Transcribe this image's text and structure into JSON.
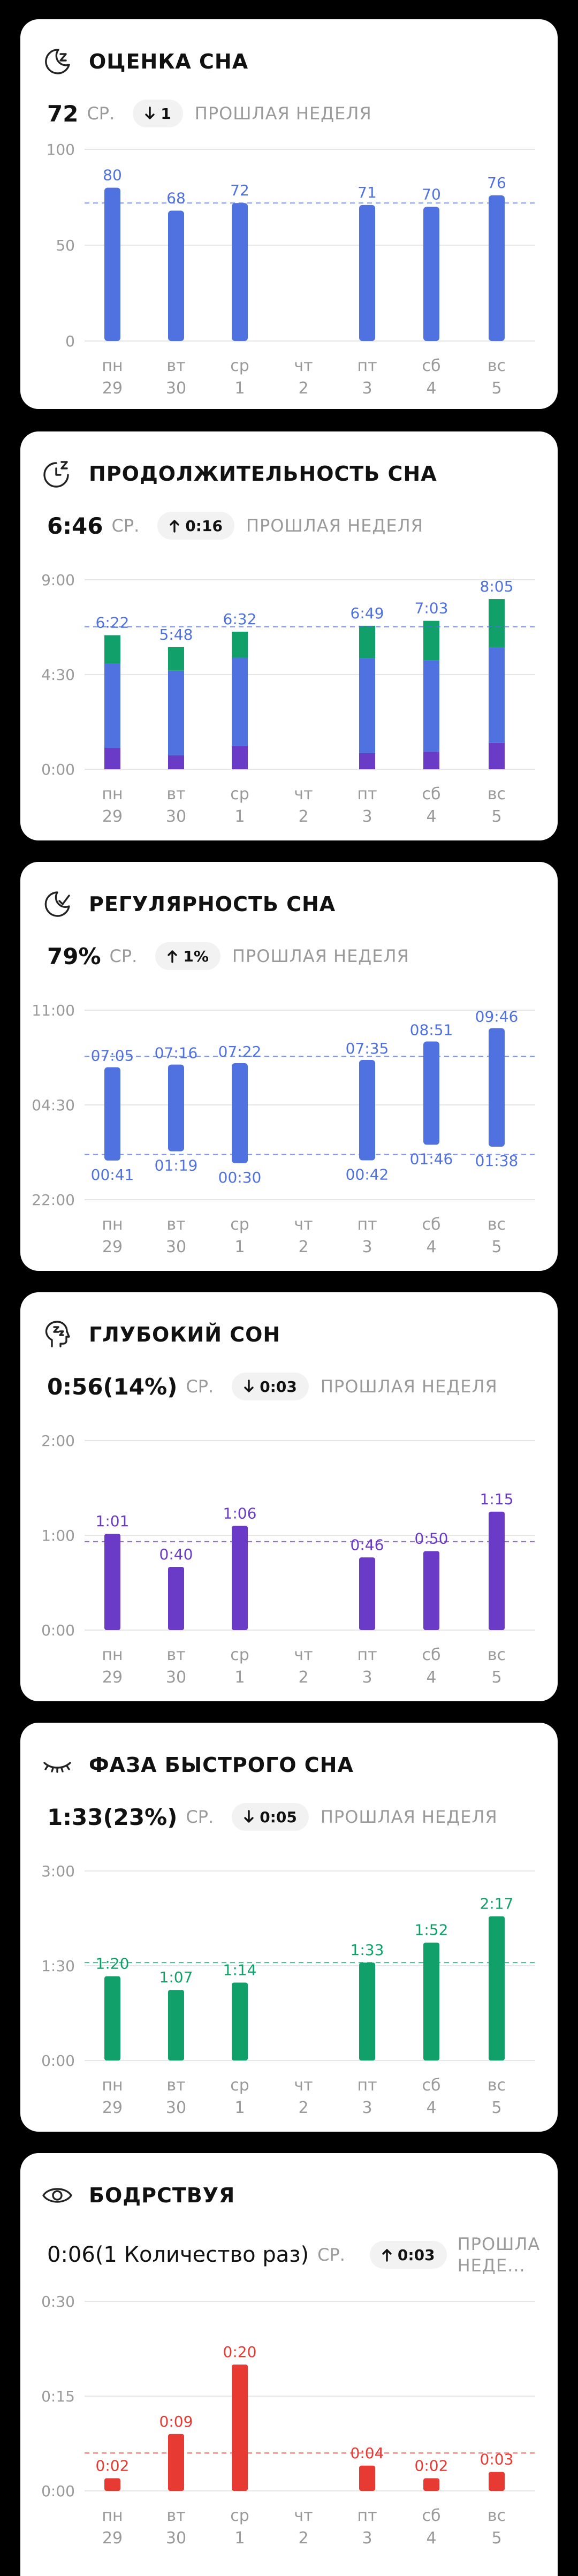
{
  "x_axis": {
    "days": [
      "пн",
      "вт",
      "ср",
      "чт",
      "пт",
      "сб",
      "вс"
    ],
    "dates": [
      "29",
      "30",
      "1",
      "2",
      "3",
      "4",
      "5"
    ]
  },
  "colors": {
    "primary": "#4f72e0",
    "green": "#12a06a",
    "purple": "#6a3bc7",
    "red": "#e63a33",
    "grid": "#e6e6e6",
    "text": "#9a9a9a"
  },
  "cards": [
    {
      "title": "ОЦЕНКА СНА",
      "icon": "moon-zzz-icon",
      "stat": {
        "main": "72",
        "unit": "СР.",
        "trend": "1",
        "trend_dir": "down",
        "trend_text": "ПРОШЛАЯ НЕДЕЛЯ"
      },
      "chart_data": {
        "type": "bar",
        "categories": [
          "пн 29",
          "вт 30",
          "ср 1",
          "чт 2",
          "пт 3",
          "сб 4",
          "вс 5"
        ],
        "values": [
          80,
          68,
          72,
          null,
          71,
          70,
          76
        ],
        "labels": [
          "80",
          "68",
          "72",
          "",
          "71",
          "70",
          "76"
        ],
        "yticks": [
          "100",
          "50",
          "0"
        ],
        "ylim": [
          0,
          100
        ],
        "average": 72,
        "color": "#4f72e0"
      }
    },
    {
      "title": "ПРОДОЛЖИТЕЛЬНОСТЬ СНА",
      "icon": "clock-zzz-icon",
      "stat": {
        "main": "6:46",
        "unit": "СР.",
        "trend": "0:16",
        "trend_dir": "up",
        "trend_text": "ПРОШЛАЯ НЕДЕЛЯ"
      },
      "chart_data": {
        "type": "bar",
        "stacked": true,
        "categories": [
          "пн 29",
          "вт 30",
          "ср 1",
          "чт 2",
          "пт 3",
          "сб 4",
          "вс 5"
        ],
        "series_colors": [
          "#6a3bc7",
          "#4f72e0",
          "#12a06a"
        ],
        "totals_min": [
          382,
          348,
          392,
          null,
          409,
          423,
          485
        ],
        "deep_min": [
          61,
          40,
          66,
          null,
          46,
          50,
          75
        ],
        "light_min": [
          241,
          241,
          252,
          null,
          270,
          261,
          273
        ],
        "rem_min": [
          80,
          67,
          74,
          null,
          93,
          112,
          137
        ],
        "labels": [
          "6:22",
          "5:48",
          "6:32",
          "",
          "6:49",
          "7:03",
          "8:05"
        ],
        "yticks": [
          "9:00",
          "4:30",
          "0:00"
        ],
        "ylim": [
          0,
          540
        ],
        "average": 406
      }
    },
    {
      "title": "РЕГУЛЯРНОСТЬ СНА",
      "icon": "moon-check-icon",
      "stat": {
        "main": "79%",
        "unit": "СР.",
        "trend": "1%",
        "trend_dir": "up",
        "trend_text": "ПРОШЛАЯ НЕДЕЛЯ"
      },
      "chart_data": {
        "type": "range",
        "categories": [
          "пн 29",
          "вт 30",
          "ср 1",
          "чт 2",
          "пт 3",
          "сб 4",
          "вс 5"
        ],
        "wake": [
          "07:05",
          "07:16",
          "07:22",
          "",
          "07:35",
          "08:51",
          "09:46"
        ],
        "bed": [
          "00:41",
          "01:19",
          "00:30",
          "",
          "00:42",
          "01:46",
          "01:38"
        ],
        "yticks": [
          "11:00",
          "04:30",
          "22:00"
        ],
        "avg_wake": "07:50",
        "avg_bed": "01:06"
      }
    },
    {
      "title": "ГЛУБОКИЙ СОН",
      "icon": "head-zzz-icon",
      "stat": {
        "main": "0:56(14%)",
        "unit": "СР.",
        "trend": "0:03",
        "trend_dir": "down",
        "trend_text": "ПРОШЛАЯ НЕДЕЛЯ"
      },
      "chart_data": {
        "type": "bar",
        "categories": [
          "пн 29",
          "вт 30",
          "ср 1",
          "чт 2",
          "пт 3",
          "сб 4",
          "вс 5"
        ],
        "values": [
          61,
          40,
          66,
          null,
          46,
          50,
          75
        ],
        "labels": [
          "1:01",
          "0:40",
          "1:06",
          "",
          "0:46",
          "0:50",
          "1:15"
        ],
        "yticks": [
          "2:00",
          "1:00",
          "0:00"
        ],
        "ylim": [
          0,
          120
        ],
        "average": 56,
        "color": "#6a3bc7"
      }
    },
    {
      "title": "ФАЗА БЫСТРОГО СНА",
      "icon": "eye-closed-icon",
      "stat": {
        "main": "1:33(23%)",
        "unit": "СР.",
        "trend": "0:05",
        "trend_dir": "down",
        "trend_text": "ПРОШЛАЯ НЕДЕЛЯ"
      },
      "chart_data": {
        "type": "bar",
        "categories": [
          "пн 29",
          "вт 30",
          "ср 1",
          "чт 2",
          "пт 3",
          "сб 4",
          "вс 5"
        ],
        "values": [
          80,
          67,
          74,
          null,
          93,
          112,
          137
        ],
        "labels": [
          "1:20",
          "1:07",
          "1:14",
          "",
          "1:33",
          "1:52",
          "2:17"
        ],
        "yticks": [
          "3:00",
          "1:30",
          "0:00"
        ],
        "ylim": [
          0,
          180
        ],
        "average": 93,
        "color": "#12a06a"
      }
    },
    {
      "title": "БОДРСТВУЯ",
      "icon": "eye-open-icon",
      "stat": {
        "main": "0:06(1 Количество раз)",
        "unit": "СР.",
        "trend": "0:03",
        "trend_dir": "up",
        "trend_text": "ПРОШЛА НЕДЕ...",
        "trend_text_lines": [
          "ПРОШЛА",
          "НЕДЕ..."
        ]
      },
      "chart_data": {
        "type": "bar",
        "categories": [
          "пн 29",
          "вт 30",
          "ср 1",
          "чт 2",
          "пт 3",
          "сб 4",
          "вс 5"
        ],
        "values": [
          2,
          9,
          20,
          null,
          4,
          2,
          3
        ],
        "labels": [
          "0:02",
          "0:09",
          "0:20",
          "",
          "0:04",
          "0:02",
          "0:03"
        ],
        "yticks": [
          "0:30",
          "0:15",
          "0:00"
        ],
        "ylim": [
          0,
          30
        ],
        "average": 6,
        "color": "#e63a33"
      }
    }
  ]
}
